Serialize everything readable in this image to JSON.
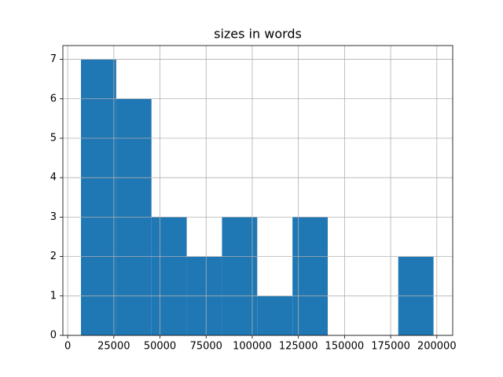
{
  "chart_data": {
    "type": "histogram",
    "title": "sizes in words",
    "bins": [
      7200,
      26300,
      45400,
      64500,
      83600,
      102700,
      121800,
      140900,
      160000,
      179100,
      198200
    ],
    "values": [
      7,
      6,
      3,
      2,
      3,
      1,
      3,
      0,
      0,
      2
    ],
    "color": "#1f77b4",
    "xlim": [
      -2600,
      208600
    ],
    "xticks": [
      0,
      25000,
      50000,
      75000,
      100000,
      125000,
      150000,
      175000,
      200000
    ],
    "ylim": [
      0,
      7.35
    ],
    "yticks": [
      0,
      1,
      2,
      3,
      4,
      5,
      6,
      7
    ],
    "grid": true
  }
}
